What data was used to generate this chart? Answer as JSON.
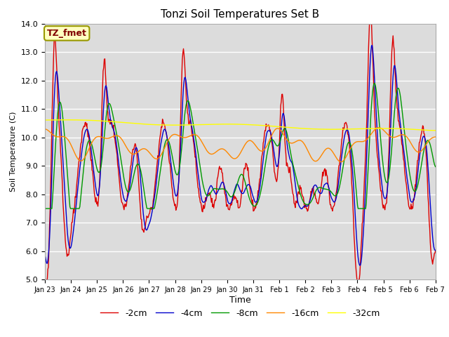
{
  "title": "Tonzi Soil Temperatures Set B",
  "xlabel": "Time",
  "ylabel": "Soil Temperature (C)",
  "ylim": [
    5.0,
    14.0
  ],
  "yticks": [
    5.0,
    6.0,
    7.0,
    8.0,
    9.0,
    10.0,
    11.0,
    12.0,
    13.0,
    14.0
  ],
  "xtick_labels": [
    "Jan 23",
    "Jan 24",
    "Jan 25",
    "Jan 26",
    "Jan 27",
    "Jan 28",
    "Jan 29",
    "Jan 30",
    "Jan 31",
    "Feb 1",
    "Feb 2",
    "Feb 3",
    "Feb 4",
    "Feb 5",
    "Feb 6",
    "Feb 7"
  ],
  "legend_label": "TZ_fmet",
  "legend_box_color": "#ffffc0",
  "legend_text_color": "#800000",
  "legend_border_color": "#999900",
  "series_labels": [
    "-2cm",
    "-4cm",
    "-8cm",
    "-16cm",
    "-32cm"
  ],
  "series_colors": [
    "#dd0000",
    "#0000cc",
    "#009900",
    "#ff8800",
    "#ffff00"
  ],
  "background_color": "#dcdcdc",
  "fig_background": "#ffffff",
  "grid_color": "#ffffff",
  "n_points": 672,
  "days": 14
}
